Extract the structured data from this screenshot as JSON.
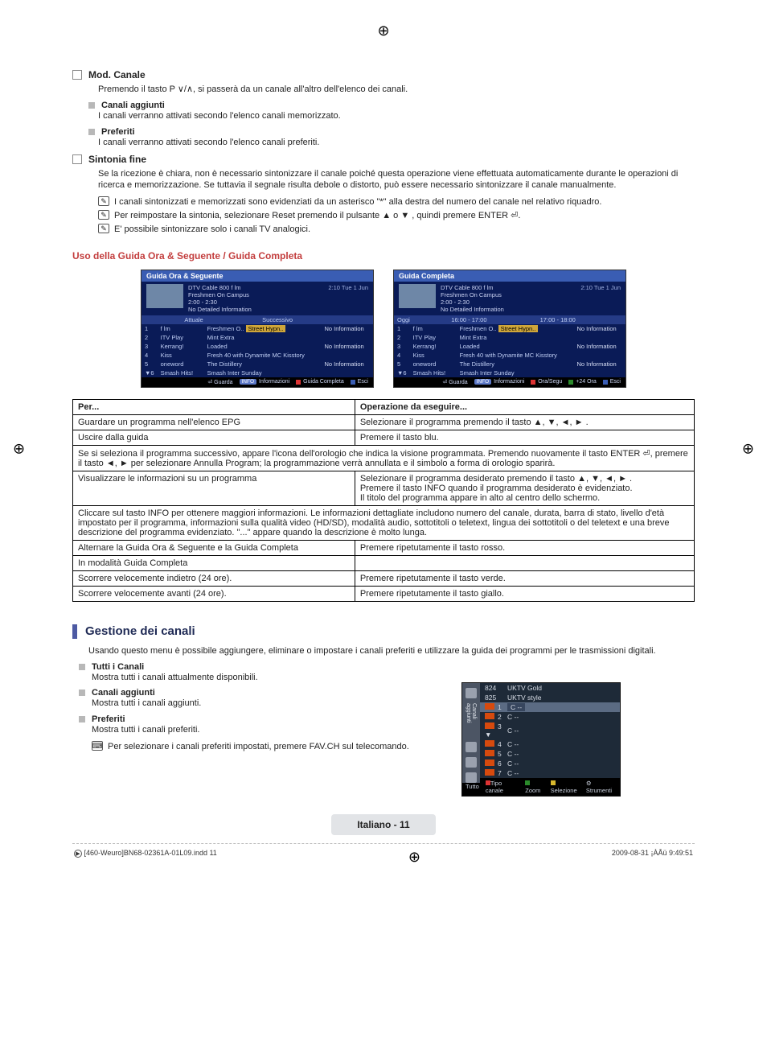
{
  "reg_mark": "⊕",
  "mod_canale": {
    "title": "Mod. Canale",
    "desc": "Premendo il tasto P ∨/∧, si passerà da un canale all'altro dell'elenco dei canali.",
    "canali_aggiunti": {
      "title": "Canali aggiunti",
      "desc": "I canali verranno attivati secondo l'elenco canali memorizzato."
    },
    "preferiti": {
      "title": "Preferiti",
      "desc": "I canali verranno attivati secondo l'elenco canali preferiti."
    }
  },
  "sintonia": {
    "title": "Sintonia fine",
    "desc": "Se la ricezione è chiara, non è necessario sintonizzare il canale poiché questa operazione viene effettuata automaticamente durante le operazioni di ricerca e memorizzazione. Se tuttavia il segnale risulta debole o distorto, può essere necessario sintonizzare il canale manualmente.",
    "notes": [
      "I canali sintonizzati e memorizzati sono evidenziati da un asterisco \"*\" alla destra del numero del canale nel relativo riquadro.",
      "Per reimpostare la sintonia, selezionare Reset premendo il pulsante ▲ o ▼ , quindi premere ENTER ⏎.",
      "E' possibile sintonizzare solo i canali TV analogici."
    ]
  },
  "uso_title": "Uso della Guida Ora & Seguente / Guida Completa",
  "guide1": {
    "title": "Guida Ora & Seguente",
    "channel": "DTV Cable 800 f lm",
    "prog": "Freshmen On Campus",
    "time": "2:00 - 2:30",
    "nodet": "No Detailed Information",
    "clock": "2:10  Tue 1 Jun",
    "col1": "Attuale",
    "col2": "Successivo",
    "rows": [
      [
        "1",
        "f lm",
        "Freshmen O..",
        "Street Hypn..",
        "No Information"
      ],
      [
        "2",
        "ITV Play",
        "Mint Extra",
        "",
        ""
      ],
      [
        "3",
        "Kerrang!",
        "Loaded",
        "",
        "No Information"
      ],
      [
        "4",
        "Kiss",
        "Fresh 40 with Dynamite MC",
        "Kisstory",
        ""
      ],
      [
        "5",
        "oneword",
        "The Distillery",
        "",
        "No Information"
      ],
      [
        "▼6",
        "Smash Hits!",
        "Smash Inter Sunday",
        "",
        ""
      ]
    ],
    "foot": [
      "⏎ Guarda",
      "INFO Informazioni",
      "■ Guida Completa",
      "■ Esci"
    ]
  },
  "guide2": {
    "title": "Guida Completa",
    "channel": "DTV Cable 800 f lm",
    "prog": "Freshmen On Campus",
    "time": "2:00 - 2:30",
    "nodet": "No Detailed Information",
    "clock": "2:10  Tue 1 Jun",
    "hdr": [
      "Oggi",
      "16:00 - 17:00",
      "17:00 - 18:00"
    ],
    "rows": [
      [
        "1",
        "f lm",
        "Freshmen O..",
        "Street Hypn..",
        "No Information"
      ],
      [
        "2",
        "ITV Play",
        "Mint Extra",
        "",
        ""
      ],
      [
        "3",
        "Kerrang!",
        "Loaded",
        "",
        "No Information"
      ],
      [
        "4",
        "Kiss",
        "Fresh 40 with Dynamite MC",
        "Kisstory",
        ""
      ],
      [
        "5",
        "oneword",
        "The Distillery",
        "",
        "No Information"
      ],
      [
        "▼6",
        "Smash Hits!",
        "Smash Inter Sunday",
        "",
        ""
      ]
    ],
    "foot": [
      "⏎ Guarda",
      "INFO Informazioni",
      "■ Ora/Segu",
      "■ +24 Ora",
      "■ Esci"
    ]
  },
  "optable": {
    "head": [
      "Per...",
      "Operazione da eseguire..."
    ],
    "r1": [
      "Guardare un programma nell'elenco EPG",
      "Selezionare il programma premendo il tasto ▲, ▼, ◄, ► ."
    ],
    "r2": [
      "Uscire dalla guida",
      "Premere il tasto blu."
    ],
    "span1": "Se si seleziona il programma successivo, appare l'icona dell'orologio che indica la visione programmata. Premendo nuovamente il tasto ENTER ⏎, premere il tasto ◄, ► per selezionare Annulla Program; la programmazione verrà annullata e il simbolo a forma di orologio sparirà.",
    "r3a": "Visualizzare le informazioni su un programma",
    "r3b": [
      "Selezionare il programma desiderato premendo il tasto ▲, ▼, ◄, ► .",
      "Premere il tasto INFO quando il programma desiderato è evidenziato.",
      "Il titolo del programma appare in alto al centro dello schermo."
    ],
    "span2": "Cliccare sul tasto INFO per ottenere maggiori informazioni. Le informazioni dettagliate includono numero del canale, durata, barra di stato, livello d'età impostato per il programma, informazioni sulla qualità video (HD/SD), modalità audio, sottotitoli o teletext, lingua dei sottotitoli o del teletext e una breve descrizione del programma evidenziato. \"...\" appare quando la descrizione è molto lunga.",
    "r4": [
      "Alternare la Guida Ora & Seguente e la Guida Completa",
      "Premere ripetutamente il tasto rosso."
    ],
    "r5": [
      "In modalità Guida Completa",
      ""
    ],
    "r6": [
      "Scorrere velocemente indietro (24 ore).",
      "Premere ripetutamente il tasto verde."
    ],
    "r7": [
      "Scorrere velocemente avanti (24 ore).",
      "Premere ripetutamente il tasto giallo."
    ]
  },
  "gestione": {
    "title": "Gestione dei canali",
    "desc": "Usando questo menu è possibile aggiungere, eliminare o impostare i canali preferiti e utilizzare la guida dei programmi per le trasmissioni digitali.",
    "tutti": {
      "title": "Tutti i Canali",
      "desc": "Mostra tutti i canali attualmente disponibili."
    },
    "canali_aggiunti": {
      "title": "Canali aggiunti",
      "desc": "Mostra tutti i canali aggiunti."
    },
    "preferiti": {
      "title": "Preferiti",
      "desc": "Mostra tutti i canali preferiti.",
      "note": "Per selezionare i canali preferiti impostati, premere FAV.CH sul telecomando."
    }
  },
  "cm": {
    "side": "Canali aggiunti",
    "rows": [
      [
        "824",
        "UKTV Gold"
      ],
      [
        "825",
        "UKTV style"
      ],
      [
        "1",
        "C --"
      ],
      [
        "2",
        "C --"
      ],
      [
        "3  ▼",
        "C --"
      ],
      [
        "4",
        "C --"
      ],
      [
        "5",
        "C --"
      ],
      [
        "6",
        "C --"
      ],
      [
        "7",
        "C --"
      ]
    ],
    "sel_index": 2,
    "foot": [
      "Tutto",
      "■ Tipo canale",
      "■ Zoom",
      "■ Selezione",
      "⚙ Strumenti"
    ]
  },
  "page_badge": "Italiano - 11",
  "footer": {
    "left": "[460-Weuro]BN68-02361A-01L09.indd   11",
    "right": "2009-08-31   ¡ÀÅü 9:49:51"
  },
  "enter_glyph": "⏎",
  "colors": {
    "red_title": "#c33e3e",
    "big_bar": "#4d5aa3",
    "big_title": "#1f2a55"
  }
}
